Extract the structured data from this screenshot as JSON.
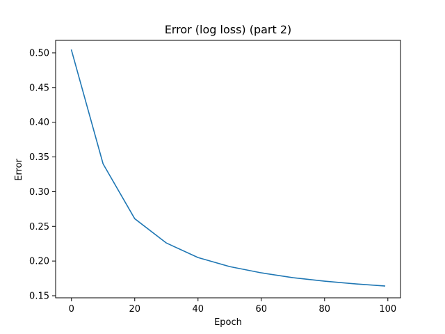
{
  "chart_data": {
    "type": "line",
    "title": "Error (log loss) (part 2)",
    "xlabel": "Epoch",
    "ylabel": "Error",
    "xlim": [
      -5,
      104
    ],
    "ylim": [
      0.147,
      0.518
    ],
    "xticks": [
      0,
      20,
      40,
      60,
      80,
      100
    ],
    "xtick_labels": [
      "0",
      "20",
      "40",
      "60",
      "80",
      "100"
    ],
    "yticks": [
      0.15,
      0.2,
      0.25,
      0.3,
      0.35,
      0.4,
      0.45,
      0.5
    ],
    "ytick_labels": [
      "0.15",
      "0.20",
      "0.25",
      "0.30",
      "0.35",
      "0.40",
      "0.45",
      "0.50"
    ],
    "grid": false,
    "series": [
      {
        "color": "#1f77b4",
        "x": [
          0,
          10,
          20,
          30,
          40,
          50,
          60,
          70,
          80,
          90,
          99
        ],
        "y": [
          0.504,
          0.34,
          0.261,
          0.226,
          0.205,
          0.192,
          0.183,
          0.176,
          0.171,
          0.167,
          0.164
        ]
      }
    ]
  }
}
